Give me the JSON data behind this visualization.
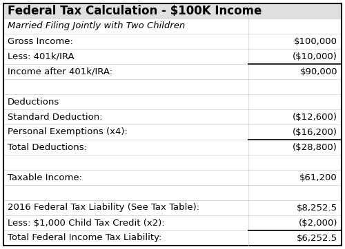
{
  "title": "Federal Tax Calculation - $100K Income",
  "subtitle": "Married Filing Jointly with Two Children",
  "rows": [
    {
      "label": "Gross Income:",
      "value": "$100,000",
      "underline_above": false,
      "blank": false,
      "section_header": false
    },
    {
      "label": "Less: 401k/IRA",
      "value": "($10,000)",
      "underline_above": false,
      "blank": false,
      "section_header": false
    },
    {
      "label": "Income after 401k/IRA:",
      "value": "$90,000",
      "underline_above": true,
      "blank": false,
      "section_header": false
    },
    {
      "label": "",
      "value": "",
      "underline_above": false,
      "blank": true,
      "section_header": false
    },
    {
      "label": "Deductions",
      "value": "",
      "underline_above": false,
      "blank": false,
      "section_header": true
    },
    {
      "label": "Standard Deduction:",
      "value": "($12,600)",
      "underline_above": false,
      "blank": false,
      "section_header": false
    },
    {
      "label": "Personal Exemptions (x4):",
      "value": "($16,200)",
      "underline_above": false,
      "blank": false,
      "section_header": false
    },
    {
      "label": "Total Deductions:",
      "value": "($28,800)",
      "underline_above": true,
      "blank": false,
      "section_header": false
    },
    {
      "label": "",
      "value": "",
      "underline_above": false,
      "blank": true,
      "section_header": false
    },
    {
      "label": "Taxable Income:",
      "value": "$61,200",
      "underline_above": false,
      "blank": false,
      "section_header": false
    },
    {
      "label": "",
      "value": "",
      "underline_above": false,
      "blank": true,
      "section_header": false
    },
    {
      "label": "2016 Federal Tax Liability (See Tax Table):",
      "value": "$8,252.5",
      "underline_above": false,
      "blank": false,
      "section_header": false
    },
    {
      "label": "Less: $1,000 Child Tax Credit (x2):",
      "value": "($2,000)",
      "underline_above": false,
      "blank": false,
      "section_header": false
    },
    {
      "label": "Total Federal Income Tax Liability:",
      "value": "$6,252.5",
      "underline_above": true,
      "blank": false,
      "section_header": false
    }
  ],
  "col_split": 0.72,
  "bg_color": "#ffffff",
  "border_color": "#000000",
  "text_color": "#000000",
  "grid_color": "#cccccc",
  "title_fontsize": 12,
  "subtitle_fontsize": 9.5,
  "body_fontsize": 9.5
}
